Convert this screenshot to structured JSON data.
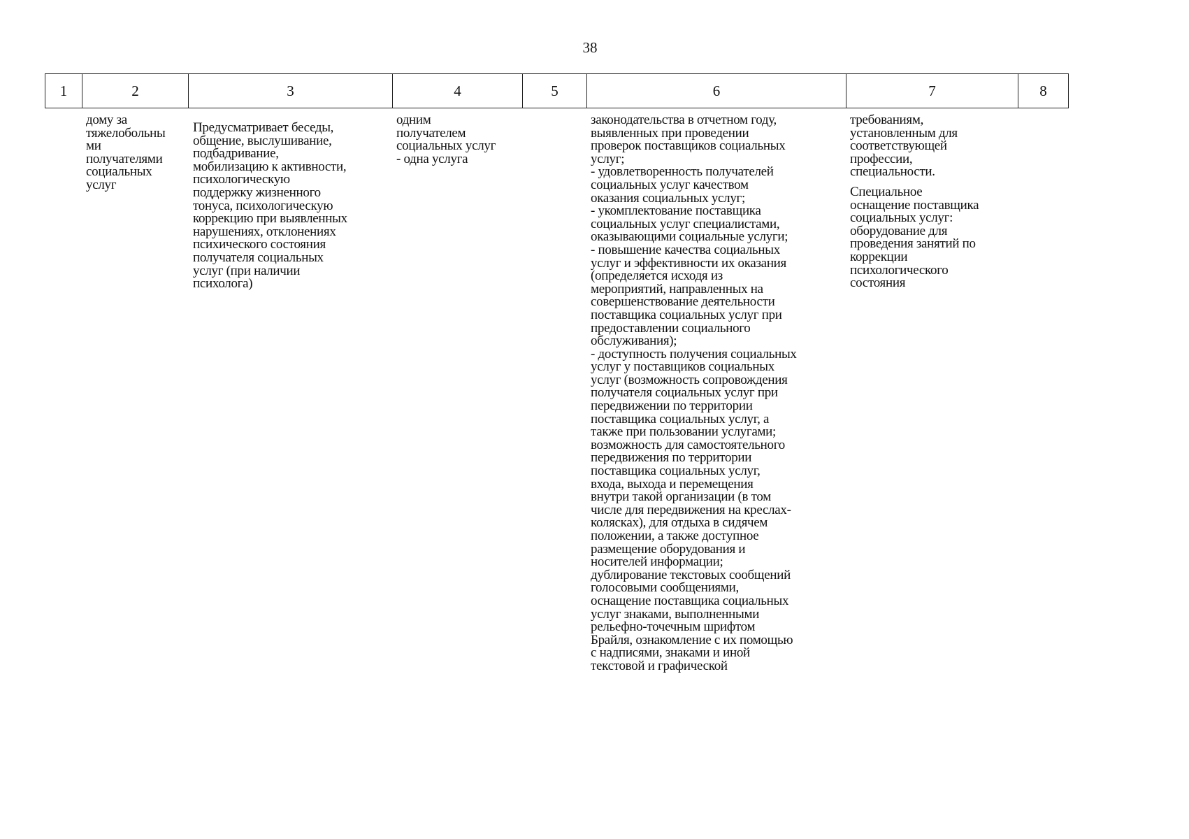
{
  "page_number": "38",
  "header": [
    "1",
    "2",
    "3",
    "4",
    "5",
    "6",
    "7",
    "8"
  ],
  "columns": {
    "c2": [
      "дому за",
      "тяжелобольны",
      "ми",
      "получателями",
      "социальных",
      "услуг"
    ],
    "c3": [
      "Предусматривает беседы,",
      "общение, выслушивание,",
      "подбадривание,",
      "мобилизацию к активности,",
      "психологическую",
      "поддержку жизненного",
      "тонуса, психологическую",
      "коррекцию при выявленных",
      "нарушениях, отклонениях",
      "психического состояния",
      "получателя социальных",
      "услуг (при наличии",
      "психолога)"
    ],
    "c4": [
      "одним",
      "получателем",
      "социальных услуг",
      "- одна услуга"
    ],
    "c6": [
      "законодательства в отчетном году,",
      "выявленных при проведении",
      "проверок поставщиков социальных",
      "услуг;",
      "- удовлетворенность получателей",
      "социальных услуг качеством",
      "оказания социальных услуг;",
      "- укомплектование поставщика",
      "социальных услуг специалистами,",
      "оказывающими социальные услуги;",
      "- повышение качества социальных",
      "услуг и эффективности их оказания",
      "(определяется исходя из",
      "мероприятий, направленных на",
      "совершенствование деятельности",
      "поставщика социальных услуг при",
      "предоставлении социального",
      "обслуживания);",
      "- доступность получения социальных",
      "услуг у поставщиков социальных",
      "услуг (возможность сопровождения",
      "получателя социальных услуг при",
      "передвижении по территории",
      "поставщика социальных услуг, а",
      "также при пользовании услугами;",
      "возможность для самостоятельного",
      "передвижения по территории",
      "поставщика социальных услуг,",
      "входа, выхода и перемещения",
      "внутри такой организации (в том",
      "числе для передвижения на креслах-",
      "колясках), для отдыха в сидячем",
      "положении, а также доступное",
      "размещение оборудования и",
      "носителей информации;",
      "дублирование текстовых сообщений",
      "голосовыми сообщениями,",
      "оснащение поставщика социальных",
      "услуг знаками, выполненными",
      "рельефно-точечным шрифтом",
      "Брайля, ознакомление с их помощью",
      "с надписями, знаками и иной",
      "текстовой и графической"
    ],
    "c7a": [
      "требованиям,",
      "установленным для",
      "соответствующей",
      "профессии,",
      "специальности."
    ],
    "c7b": [
      "Специальное",
      "оснащение поставщика",
      "социальных услуг:",
      "оборудование для",
      "проведения занятий по",
      "коррекции",
      "психологического",
      "состояния"
    ]
  }
}
